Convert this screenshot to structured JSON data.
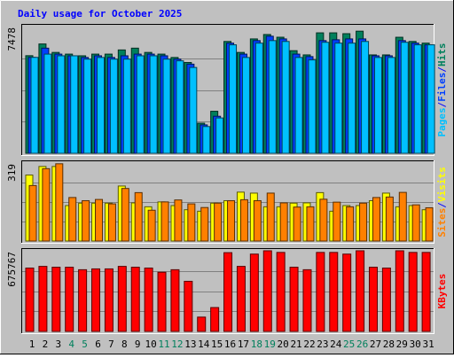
{
  "colors": {
    "background": "#c0c0c0",
    "hits": "#00805c",
    "files": "#0040ff",
    "pages": "#00c0ff",
    "visits": "#ffff00",
    "sites": "#ff8000",
    "kbytes": "#ff0000",
    "title": "#0000ff",
    "weekend_label": "#00805c",
    "weekday_label": "#000000",
    "separator": "#0000ff"
  },
  "chart_data": [
    {
      "type": "bar",
      "title": "Daily usage for October 2025",
      "panel": "hits-files-pages",
      "categories": [
        "1",
        "2",
        "3",
        "4",
        "5",
        "6",
        "7",
        "8",
        "9",
        "10",
        "11",
        "12",
        "13",
        "14",
        "15",
        "16",
        "17",
        "18",
        "19",
        "20",
        "21",
        "22",
        "23",
        "24",
        "25",
        "26",
        "27",
        "28",
        "29",
        "30",
        "31"
      ],
      "weekend_days": [
        "4",
        "5",
        "11",
        "12",
        "18",
        "19",
        "25",
        "26"
      ],
      "ymax_label": "7478",
      "ylim": [
        0,
        7478
      ],
      "legend": [
        "Pages",
        "Files",
        "Hits"
      ],
      "series": [
        {
          "name": "Hits",
          "values": [
            5760,
            6452,
            5953,
            5853,
            5754,
            5853,
            5853,
            6099,
            6205,
            5953,
            5853,
            5655,
            5359,
            1776,
            2480,
            6600,
            5953,
            6750,
            7010,
            6850,
            6055,
            5807,
            7108,
            7108,
            7059,
            7207,
            5807,
            5807,
            6848,
            6600,
            6501
          ]
        },
        {
          "name": "Files",
          "values": [
            5660,
            6205,
            5853,
            5754,
            5655,
            5754,
            5655,
            5754,
            5853,
            5853,
            5754,
            5557,
            5261,
            1677,
            2185,
            6501,
            5853,
            6650,
            6910,
            6750,
            5853,
            5707,
            6650,
            6700,
            6750,
            6750,
            5754,
            5754,
            6650,
            6501,
            6402
          ]
        },
        {
          "name": "Pages",
          "values": [
            5660,
            5853,
            5754,
            5754,
            5557,
            5655,
            5557,
            5557,
            5754,
            5754,
            5557,
            5458,
            5065,
            1579,
            2086,
            6402,
            5655,
            6501,
            6650,
            6600,
            5655,
            5511,
            6550,
            6501,
            6501,
            6600,
            5655,
            5655,
            6550,
            6402,
            6402
          ]
        }
      ]
    },
    {
      "type": "bar",
      "panel": "visits-sites",
      "categories": [
        "1",
        "2",
        "3",
        "4",
        "5",
        "6",
        "7",
        "8",
        "9",
        "10",
        "11",
        "12",
        "13",
        "14",
        "15",
        "16",
        "17",
        "18",
        "19",
        "20",
        "21",
        "22",
        "23",
        "24",
        "25",
        "26",
        "27",
        "28",
        "29",
        "30",
        "31"
      ],
      "ymax_label": "319",
      "ylim": [
        0,
        319
      ],
      "legend": [
        "Sites",
        "Visits"
      ],
      "series": [
        {
          "name": "Visits",
          "values": [
            270,
            305,
            305,
            145,
            155,
            155,
            155,
            225,
            156,
            140,
            160,
            145,
            128,
            122,
            155,
            165,
            200,
            196,
            140,
            140,
            155,
            156,
            198,
            122,
            145,
            145,
            165,
            196,
            140,
            145,
            128
          ]
        },
        {
          "name": "Sites",
          "values": [
            227,
            296,
            316,
            178,
            165,
            170,
            152,
            215,
            198,
            126,
            160,
            168,
            152,
            137,
            155,
            165,
            169,
            165,
            196,
            156,
            139,
            140,
            171,
            159,
            140,
            155,
            178,
            180,
            199,
            148,
            136
          ]
        }
      ]
    },
    {
      "type": "bar",
      "panel": "kbytes",
      "categories": [
        "1",
        "2",
        "3",
        "4",
        "5",
        "6",
        "7",
        "8",
        "9",
        "10",
        "11",
        "12",
        "13",
        "14",
        "15",
        "16",
        "17",
        "18",
        "19",
        "20",
        "21",
        "22",
        "23",
        "24",
        "25",
        "26",
        "27",
        "28",
        "29",
        "30",
        "31"
      ],
      "ymax_label": "675767",
      "ylim": [
        0,
        675767
      ],
      "legend": [
        "KBytes"
      ],
      "series": [
        {
          "name": "KBytes",
          "values": [
            531000,
            545000,
            538000,
            538000,
            517000,
            524000,
            524000,
            545000,
            538000,
            531000,
            496000,
            517000,
            420000,
            120000,
            200000,
            660000,
            545000,
            648000,
            675767,
            662000,
            538000,
            517000,
            662000,
            662000,
            648000,
            675767,
            538000,
            531000,
            675767,
            662000,
            662000
          ]
        }
      ]
    }
  ]
}
